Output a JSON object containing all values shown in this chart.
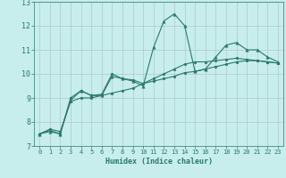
{
  "xlabel": "Humidex (Indice chaleur)",
  "xlim": [
    -0.5,
    23.5
  ],
  "ylim": [
    7,
    13
  ],
  "yticks": [
    7,
    8,
    9,
    10,
    11,
    12,
    13
  ],
  "xticks": [
    0,
    1,
    2,
    3,
    4,
    5,
    6,
    7,
    8,
    9,
    10,
    11,
    12,
    13,
    14,
    15,
    16,
    17,
    18,
    19,
    20,
    21,
    22,
    23
  ],
  "bg_color": "#c8eded",
  "grid_color": "#b0c8c8",
  "line_color": "#2a7a6a",
  "line1_y": [
    7.5,
    7.6,
    7.5,
    8.9,
    9.3,
    9.1,
    9.1,
    9.9,
    9.8,
    9.7,
    9.5,
    11.1,
    12.2,
    12.5,
    12.0,
    10.1,
    10.2,
    10.7,
    11.2,
    11.3,
    11.0,
    11.0,
    10.7,
    10.5
  ],
  "line2_y": [
    7.5,
    7.65,
    7.5,
    9.0,
    9.3,
    9.1,
    9.15,
    10.0,
    9.8,
    9.75,
    9.6,
    9.8,
    10.0,
    10.2,
    10.4,
    10.5,
    10.5,
    10.55,
    10.6,
    10.65,
    10.6,
    10.55,
    10.5,
    10.45
  ],
  "line3_y": [
    7.5,
    7.7,
    7.6,
    8.85,
    9.0,
    9.0,
    9.1,
    9.2,
    9.3,
    9.4,
    9.6,
    9.7,
    9.8,
    9.9,
    10.05,
    10.1,
    10.2,
    10.3,
    10.4,
    10.5,
    10.55,
    10.55,
    10.5,
    10.45
  ]
}
